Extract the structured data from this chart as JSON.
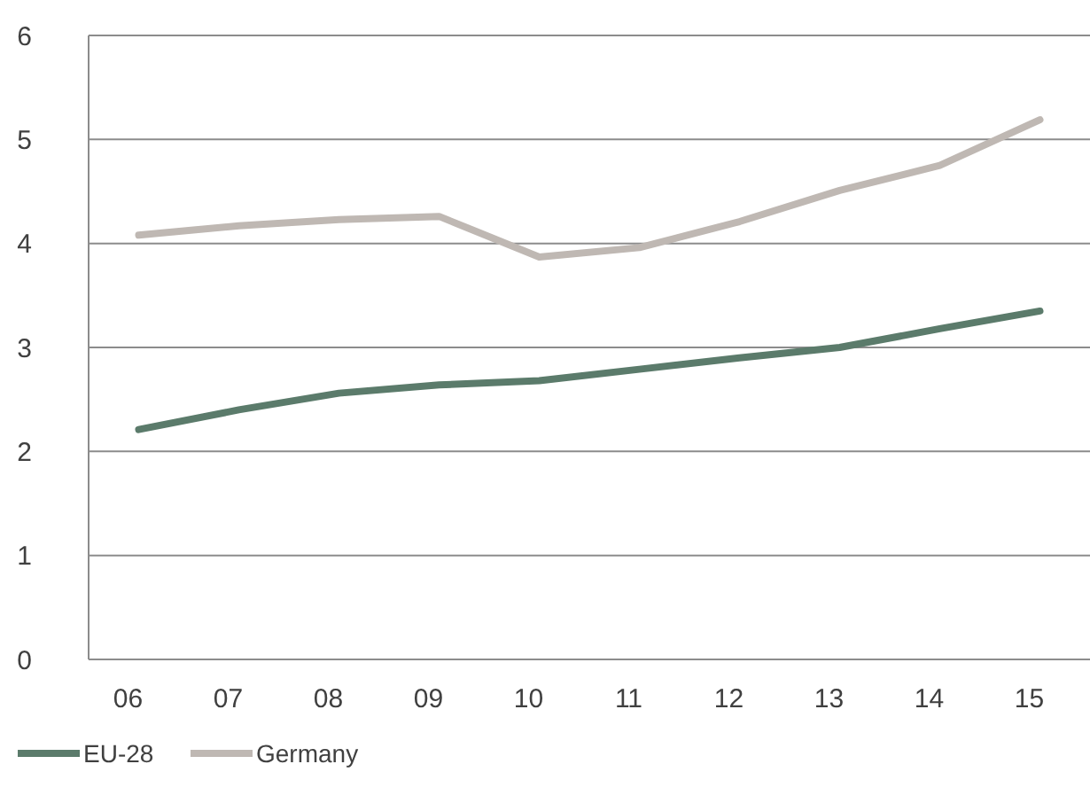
{
  "chart_data": {
    "type": "line",
    "categories": [
      "06",
      "07",
      "08",
      "09",
      "10",
      "11",
      "12",
      "13",
      "14",
      "15"
    ],
    "series": [
      {
        "name": "EU-28",
        "color": "#5b7b6b",
        "values": [
          2.21,
          2.4,
          2.56,
          2.64,
          2.68,
          2.79,
          2.9,
          3.0,
          3.18,
          3.35
        ]
      },
      {
        "name": "Germany",
        "color": "#bfb8b3",
        "values": [
          4.08,
          4.17,
          4.23,
          4.26,
          3.87,
          3.96,
          4.21,
          4.51,
          4.75,
          5.19
        ]
      }
    ],
    "ylim": [
      0,
      6
    ],
    "yticks": [
      0,
      1,
      2,
      3,
      4,
      5,
      6
    ],
    "grid": "y",
    "legend": "bottom left",
    "marker": "none",
    "line_style": "solid"
  }
}
